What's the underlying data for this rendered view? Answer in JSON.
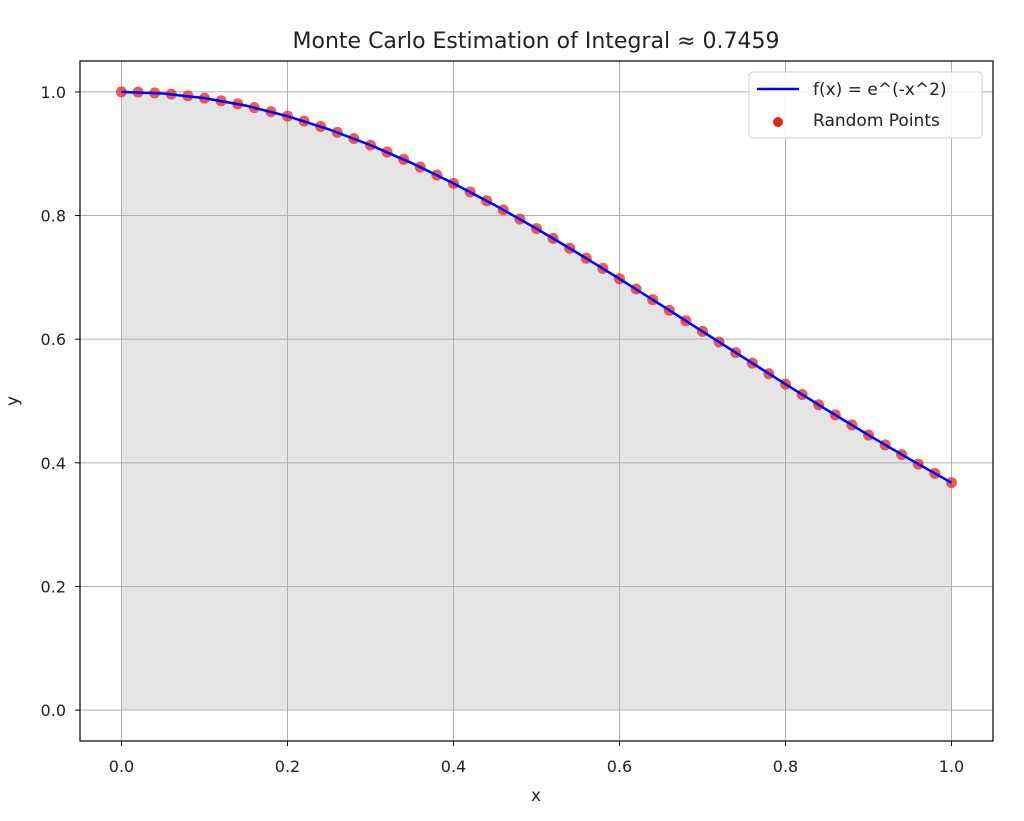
{
  "chart_data": {
    "type": "line",
    "title": "Monte Carlo Estimation of Integral ≈ 0.7459",
    "xlabel": "x",
    "ylabel": "y",
    "xlim": [
      -0.05,
      1.05
    ],
    "ylim": [
      -0.05,
      1.05
    ],
    "xticks": [
      "0.0",
      "0.2",
      "0.4",
      "0.6",
      "0.8",
      "1.0"
    ],
    "yticks": [
      "0.0",
      "0.2",
      "0.4",
      "0.6",
      "0.8",
      "1.0"
    ],
    "grid": true,
    "legend_position": "top-right",
    "fill_under_curve": true,
    "series": [
      {
        "name": "f(x) = e^(-x^2)",
        "kind": "line",
        "color": "#0000ff",
        "x": [
          0.0,
          0.05,
          0.1,
          0.15,
          0.2,
          0.25,
          0.3,
          0.35,
          0.4,
          0.45,
          0.5,
          0.55,
          0.6,
          0.65,
          0.7,
          0.75,
          0.8,
          0.85,
          0.9,
          0.95,
          1.0
        ],
        "y": [
          1.0,
          0.9975,
          0.99,
          0.9778,
          0.9608,
          0.9394,
          0.9139,
          0.8847,
          0.8521,
          0.8167,
          0.7788,
          0.739,
          0.6977,
          0.6554,
          0.6126,
          0.5698,
          0.5273,
          0.4855,
          0.4449,
          0.4056,
          0.3679
        ]
      },
      {
        "name": "Random Points",
        "kind": "scatter",
        "color": "#e8251b",
        "x": [
          0.0,
          0.02,
          0.04,
          0.06,
          0.08,
          0.1,
          0.12,
          0.14,
          0.16,
          0.18,
          0.2,
          0.22,
          0.24,
          0.26,
          0.28,
          0.3,
          0.32,
          0.34,
          0.36,
          0.38,
          0.4,
          0.42,
          0.44,
          0.46,
          0.48,
          0.5,
          0.52,
          0.54,
          0.56,
          0.58,
          0.6,
          0.62,
          0.64,
          0.66,
          0.68,
          0.7,
          0.72,
          0.74,
          0.76,
          0.78,
          0.8,
          0.82,
          0.84,
          0.86,
          0.88,
          0.9,
          0.92,
          0.94,
          0.96,
          0.98,
          1.0
        ],
        "y": [
          1.0,
          0.9996,
          0.9984,
          0.9964,
          0.9936,
          0.99,
          0.9857,
          0.9806,
          0.9747,
          0.9681,
          0.9608,
          0.9528,
          0.944,
          0.9346,
          0.9246,
          0.9139,
          0.9027,
          0.8909,
          0.8785,
          0.8656,
          0.8521,
          0.8382,
          0.8239,
          0.8092,
          0.7942,
          0.7788,
          0.7631,
          0.7471,
          0.7309,
          0.7145,
          0.6977,
          0.6811,
          0.6639,
          0.6468,
          0.6298,
          0.6126,
          0.5954,
          0.5783,
          0.5612,
          0.5442,
          0.5273,
          0.5106,
          0.494,
          0.4776,
          0.4613,
          0.4449,
          0.429,
          0.4133,
          0.3979,
          0.3829,
          0.3679
        ]
      }
    ]
  }
}
